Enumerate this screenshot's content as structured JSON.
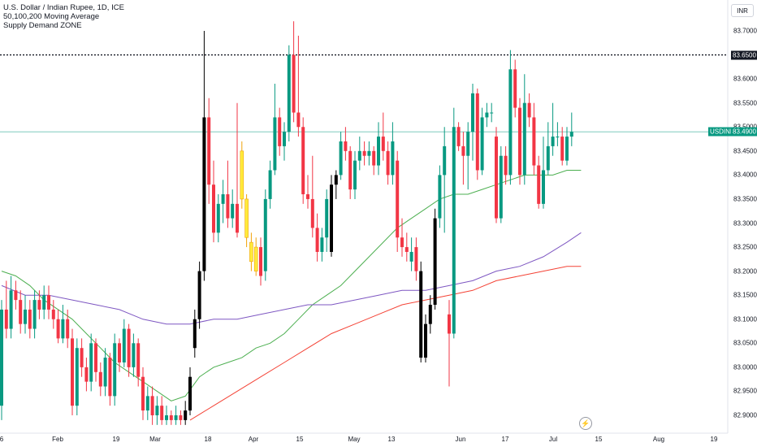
{
  "header": {
    "title": "U.S. Dollar / Indian Rupee, 1D, ICE",
    "indicator_1": "50,100,200 Moving Average",
    "indicator_2": "Supply Demand ZONE",
    "currency": "INR"
  },
  "price_tags": {
    "level_value": "83.6500",
    "symbol": "USDINR",
    "current_value": "83.4900"
  },
  "colors": {
    "up": "#089981",
    "down": "#f23645",
    "black": "#000000",
    "yellow": "#ffeb3b",
    "ma50": "#4caf50",
    "ma100": "#7e57c2",
    "ma200": "#f44336",
    "current_line": "#089981",
    "level_line": "#131722"
  },
  "chart_data": {
    "type": "candlestick",
    "y_axis": {
      "range": [
        82.88,
        83.72
      ],
      "ticks": [
        "83.7000",
        "83.6500",
        "83.6000",
        "83.5500",
        "83.5000",
        "83.4500",
        "83.4000",
        "83.3500",
        "83.3000",
        "83.2500",
        "83.2000",
        "83.1500",
        "83.1000",
        "83.0500",
        "83.0000",
        "82.9500",
        "82.9000"
      ]
    },
    "x_axis": {
      "ticks": [
        "6",
        "Feb",
        "19",
        "Mar",
        "18",
        "Apr",
        "15",
        "May",
        "13",
        "Jun",
        "17",
        "Jul",
        "15",
        "Aug",
        "19"
      ]
    },
    "horizontal_level": 83.65,
    "current_price": 83.49,
    "candles": [
      {
        "o": 82.92,
        "c": 83.12,
        "h": 83.14,
        "l": 82.89,
        "k": "up"
      },
      {
        "o": 83.12,
        "c": 83.08,
        "h": 83.18,
        "l": 83.06,
        "k": "down"
      },
      {
        "o": 83.08,
        "c": 83.16,
        "h": 83.19,
        "l": 83.06,
        "k": "up"
      },
      {
        "o": 83.16,
        "c": 83.14,
        "h": 83.18,
        "l": 83.12,
        "k": "down"
      },
      {
        "o": 83.14,
        "c": 83.09,
        "h": 83.16,
        "l": 83.07,
        "k": "down"
      },
      {
        "o": 83.09,
        "c": 83.12,
        "h": 83.15,
        "l": 83.07,
        "k": "up"
      },
      {
        "o": 83.12,
        "c": 83.08,
        "h": 83.14,
        "l": 83.06,
        "k": "down"
      },
      {
        "o": 83.08,
        "c": 83.14,
        "h": 83.16,
        "l": 83.06,
        "k": "up"
      },
      {
        "o": 83.14,
        "c": 83.12,
        "h": 83.16,
        "l": 83.1,
        "k": "down"
      },
      {
        "o": 83.12,
        "c": 83.15,
        "h": 83.17,
        "l": 83.1,
        "k": "up"
      },
      {
        "o": 83.15,
        "c": 83.12,
        "h": 83.17,
        "l": 83.1,
        "k": "down"
      },
      {
        "o": 83.12,
        "c": 83.1,
        "h": 83.14,
        "l": 83.08,
        "k": "down"
      },
      {
        "o": 83.1,
        "c": 83.06,
        "h": 83.12,
        "l": 83.05,
        "k": "down"
      },
      {
        "o": 83.06,
        "c": 83.1,
        "h": 83.13,
        "l": 83.05,
        "k": "up"
      },
      {
        "o": 83.1,
        "c": 83.06,
        "h": 83.12,
        "l": 83.04,
        "k": "down"
      },
      {
        "o": 83.06,
        "c": 82.92,
        "h": 83.08,
        "l": 82.9,
        "k": "down"
      },
      {
        "o": 82.92,
        "c": 83.04,
        "h": 83.06,
        "l": 82.9,
        "k": "up"
      },
      {
        "o": 83.04,
        "c": 83.0,
        "h": 83.06,
        "l": 82.98,
        "k": "down"
      },
      {
        "o": 83.0,
        "c": 82.97,
        "h": 83.02,
        "l": 82.95,
        "k": "down"
      },
      {
        "o": 82.97,
        "c": 83.05,
        "h": 83.07,
        "l": 82.95,
        "k": "up"
      },
      {
        "o": 83.05,
        "c": 82.99,
        "h": 83.06,
        "l": 82.97,
        "k": "down"
      },
      {
        "o": 82.99,
        "c": 82.96,
        "h": 83.01,
        "l": 82.94,
        "k": "down"
      },
      {
        "o": 82.96,
        "c": 83.02,
        "h": 83.04,
        "l": 82.94,
        "k": "up"
      },
      {
        "o": 83.02,
        "c": 82.94,
        "h": 83.03,
        "l": 82.92,
        "k": "down"
      },
      {
        "o": 82.94,
        "c": 83.05,
        "h": 83.07,
        "l": 82.92,
        "k": "up"
      },
      {
        "o": 83.05,
        "c": 83.01,
        "h": 83.06,
        "l": 82.99,
        "k": "down"
      },
      {
        "o": 83.01,
        "c": 83.08,
        "h": 83.1,
        "l": 83.0,
        "k": "up"
      },
      {
        "o": 83.08,
        "c": 83.0,
        "h": 83.09,
        "l": 82.98,
        "k": "down"
      },
      {
        "o": 83.0,
        "c": 83.05,
        "h": 83.07,
        "l": 82.98,
        "k": "up"
      },
      {
        "o": 83.05,
        "c": 82.98,
        "h": 83.06,
        "l": 82.96,
        "k": "down"
      },
      {
        "o": 82.98,
        "c": 82.91,
        "h": 83.0,
        "l": 82.89,
        "k": "down"
      },
      {
        "o": 82.91,
        "c": 82.94,
        "h": 82.96,
        "l": 82.89,
        "k": "up"
      },
      {
        "o": 82.94,
        "c": 82.9,
        "h": 82.96,
        "l": 82.88,
        "k": "down"
      },
      {
        "o": 82.9,
        "c": 82.92,
        "h": 82.94,
        "l": 82.88,
        "k": "up"
      },
      {
        "o": 82.92,
        "c": 82.89,
        "h": 82.94,
        "l": 82.88,
        "k": "down"
      },
      {
        "o": 82.89,
        "c": 82.9,
        "h": 82.92,
        "l": 82.88,
        "k": "up"
      },
      {
        "o": 82.9,
        "c": 82.89,
        "h": 82.91,
        "l": 82.88,
        "k": "down"
      },
      {
        "o": 82.89,
        "c": 82.9,
        "h": 82.92,
        "l": 82.88,
        "k": "up"
      },
      {
        "o": 82.89,
        "c": 82.9,
        "h": 82.91,
        "l": 82.88,
        "k": "down"
      },
      {
        "o": 82.89,
        "c": 82.91,
        "h": 82.93,
        "l": 82.88,
        "k": "black"
      },
      {
        "o": 82.91,
        "c": 82.98,
        "h": 83.0,
        "l": 82.9,
        "k": "black"
      },
      {
        "o": 83.04,
        "c": 83.1,
        "h": 83.12,
        "l": 83.02,
        "k": "black"
      },
      {
        "o": 83.1,
        "c": 83.2,
        "h": 83.22,
        "l": 83.08,
        "k": "black"
      },
      {
        "o": 83.2,
        "c": 83.52,
        "h": 83.7,
        "l": 83.18,
        "k": "black"
      },
      {
        "o": 83.52,
        "c": 83.38,
        "h": 83.56,
        "l": 83.34,
        "k": "down"
      },
      {
        "o": 83.38,
        "c": 83.28,
        "h": 83.43,
        "l": 83.26,
        "k": "down"
      },
      {
        "o": 83.28,
        "c": 83.34,
        "h": 83.36,
        "l": 83.26,
        "k": "up"
      },
      {
        "o": 83.34,
        "c": 83.36,
        "h": 83.39,
        "l": 83.3,
        "k": "up"
      },
      {
        "o": 83.36,
        "c": 83.31,
        "h": 83.43,
        "l": 83.29,
        "k": "down"
      },
      {
        "o": 83.31,
        "c": 83.34,
        "h": 83.37,
        "l": 83.29,
        "k": "up"
      },
      {
        "o": 83.34,
        "c": 83.28,
        "h": 83.55,
        "l": 83.27,
        "k": "down"
      },
      {
        "o": 83.35,
        "c": 83.45,
        "h": 83.47,
        "l": 83.33,
        "k": "yellow"
      },
      {
        "o": 83.35,
        "c": 83.27,
        "h": 83.36,
        "l": 83.25,
        "k": "yellow"
      },
      {
        "o": 83.26,
        "c": 83.22,
        "h": 83.28,
        "l": 83.2,
        "k": "yellow"
      },
      {
        "o": 83.2,
        "c": 83.25,
        "h": 83.27,
        "l": 83.19,
        "k": "yellow"
      },
      {
        "o": 83.25,
        "c": 83.19,
        "h": 83.27,
        "l": 83.17,
        "k": "down"
      },
      {
        "o": 83.2,
        "c": 83.35,
        "h": 83.37,
        "l": 83.18,
        "k": "up"
      },
      {
        "o": 83.35,
        "c": 83.41,
        "h": 83.43,
        "l": 83.33,
        "k": "up"
      },
      {
        "o": 83.41,
        "c": 83.52,
        "h": 83.59,
        "l": 83.4,
        "k": "up"
      },
      {
        "o": 83.52,
        "c": 83.46,
        "h": 83.54,
        "l": 83.44,
        "k": "down"
      },
      {
        "o": 83.46,
        "c": 83.49,
        "h": 83.51,
        "l": 83.43,
        "k": "up"
      },
      {
        "o": 83.49,
        "c": 83.65,
        "h": 83.67,
        "l": 83.47,
        "k": "up"
      },
      {
        "o": 83.65,
        "c": 83.53,
        "h": 83.72,
        "l": 83.51,
        "k": "down"
      },
      {
        "o": 83.53,
        "c": 83.5,
        "h": 83.69,
        "l": 83.48,
        "k": "down"
      },
      {
        "o": 83.5,
        "c": 83.36,
        "h": 83.52,
        "l": 83.34,
        "k": "down"
      },
      {
        "o": 83.36,
        "c": 83.35,
        "h": 83.4,
        "l": 83.33,
        "k": "down"
      },
      {
        "o": 83.35,
        "c": 83.29,
        "h": 83.44,
        "l": 83.27,
        "k": "down"
      },
      {
        "o": 83.29,
        "c": 83.24,
        "h": 83.32,
        "l": 83.22,
        "k": "down"
      },
      {
        "o": 83.24,
        "c": 83.27,
        "h": 83.29,
        "l": 83.22,
        "k": "up"
      },
      {
        "o": 83.27,
        "c": 83.35,
        "h": 83.37,
        "l": 83.24,
        "k": "up"
      },
      {
        "o": 83.24,
        "c": 83.38,
        "h": 83.4,
        "l": 83.23,
        "k": "black"
      },
      {
        "o": 83.38,
        "c": 83.4,
        "h": 83.41,
        "l": 83.35,
        "k": "black"
      },
      {
        "o": 83.4,
        "c": 83.47,
        "h": 83.49,
        "l": 83.39,
        "k": "up"
      },
      {
        "o": 83.47,
        "c": 83.45,
        "h": 83.5,
        "l": 83.43,
        "k": "down"
      },
      {
        "o": 83.45,
        "c": 83.37,
        "h": 83.46,
        "l": 83.35,
        "k": "down"
      },
      {
        "o": 83.37,
        "c": 83.43,
        "h": 83.45,
        "l": 83.35,
        "k": "up"
      },
      {
        "o": 83.43,
        "c": 83.45,
        "h": 83.48,
        "l": 83.41,
        "k": "up"
      },
      {
        "o": 83.45,
        "c": 83.44,
        "h": 83.47,
        "l": 83.42,
        "k": "down"
      },
      {
        "o": 83.44,
        "c": 83.45,
        "h": 83.47,
        "l": 83.42,
        "k": "up"
      },
      {
        "o": 83.45,
        "c": 83.42,
        "h": 83.46,
        "l": 83.4,
        "k": "down"
      },
      {
        "o": 83.42,
        "c": 83.48,
        "h": 83.51,
        "l": 83.4,
        "k": "up"
      },
      {
        "o": 83.48,
        "c": 83.45,
        "h": 83.53,
        "l": 83.43,
        "k": "down"
      },
      {
        "o": 83.45,
        "c": 83.4,
        "h": 83.47,
        "l": 83.38,
        "k": "down"
      },
      {
        "o": 83.4,
        "c": 83.47,
        "h": 83.51,
        "l": 83.38,
        "k": "up"
      },
      {
        "o": 83.43,
        "c": 83.27,
        "h": 83.45,
        "l": 83.24,
        "k": "down"
      },
      {
        "o": 83.27,
        "c": 83.25,
        "h": 83.31,
        "l": 83.23,
        "k": "down"
      },
      {
        "o": 83.25,
        "c": 83.24,
        "h": 83.28,
        "l": 83.22,
        "k": "down"
      },
      {
        "o": 83.24,
        "c": 83.22,
        "h": 83.27,
        "l": 83.2,
        "k": "up"
      },
      {
        "o": 83.25,
        "c": 83.2,
        "h": 83.27,
        "l": 83.18,
        "k": "down"
      },
      {
        "o": 83.2,
        "c": 83.02,
        "h": 83.22,
        "l": 83.01,
        "k": "black"
      },
      {
        "o": 83.02,
        "c": 83.09,
        "h": 83.11,
        "l": 83.01,
        "k": "black"
      },
      {
        "o": 83.09,
        "c": 83.13,
        "h": 83.15,
        "l": 83.07,
        "k": "black"
      },
      {
        "o": 83.13,
        "c": 83.31,
        "h": 83.33,
        "l": 83.12,
        "k": "black"
      },
      {
        "o": 83.31,
        "c": 83.4,
        "h": 83.42,
        "l": 83.29,
        "k": "up"
      },
      {
        "o": 83.4,
        "c": 83.46,
        "h": 83.5,
        "l": 83.28,
        "k": "up"
      },
      {
        "o": 83.11,
        "c": 83.07,
        "h": 83.14,
        "l": 82.96,
        "k": "down"
      },
      {
        "o": 83.07,
        "c": 83.5,
        "h": 83.54,
        "l": 83.06,
        "k": "up"
      },
      {
        "o": 83.5,
        "c": 83.46,
        "h": 83.51,
        "l": 83.45,
        "k": "down"
      },
      {
        "o": 83.46,
        "c": 83.44,
        "h": 83.49,
        "l": 83.38,
        "k": "down"
      },
      {
        "o": 83.44,
        "c": 83.49,
        "h": 83.51,
        "l": 83.37,
        "k": "up"
      },
      {
        "o": 83.49,
        "c": 83.57,
        "h": 83.59,
        "l": 83.43,
        "k": "up"
      },
      {
        "o": 83.57,
        "c": 83.41,
        "h": 83.58,
        "l": 83.39,
        "k": "down"
      },
      {
        "o": 83.41,
        "c": 83.52,
        "h": 83.54,
        "l": 83.4,
        "k": "up"
      },
      {
        "o": 83.52,
        "c": 83.53,
        "h": 83.55,
        "l": 83.5,
        "k": "up"
      },
      {
        "o": 83.53,
        "c": 83.53,
        "h": 83.55,
        "l": 83.51,
        "k": "up"
      },
      {
        "o": 83.48,
        "c": 83.31,
        "h": 83.5,
        "l": 83.3,
        "k": "down"
      },
      {
        "o": 83.31,
        "c": 83.44,
        "h": 83.46,
        "l": 83.3,
        "k": "up"
      },
      {
        "o": 83.44,
        "c": 83.4,
        "h": 83.46,
        "l": 83.38,
        "k": "down"
      },
      {
        "o": 83.4,
        "c": 83.62,
        "h": 83.66,
        "l": 83.38,
        "k": "up"
      },
      {
        "o": 83.62,
        "c": 83.54,
        "h": 83.64,
        "l": 83.52,
        "k": "down"
      },
      {
        "o": 83.54,
        "c": 83.4,
        "h": 83.56,
        "l": 83.38,
        "k": "down"
      },
      {
        "o": 83.4,
        "c": 83.55,
        "h": 83.61,
        "l": 83.38,
        "k": "up"
      },
      {
        "o": 83.55,
        "c": 83.52,
        "h": 83.57,
        "l": 83.5,
        "k": "down"
      },
      {
        "o": 83.52,
        "c": 83.42,
        "h": 83.55,
        "l": 83.4,
        "k": "down"
      },
      {
        "o": 83.42,
        "c": 83.34,
        "h": 83.44,
        "l": 83.33,
        "k": "down"
      },
      {
        "o": 83.34,
        "c": 83.41,
        "h": 83.48,
        "l": 83.33,
        "k": "up"
      },
      {
        "o": 83.41,
        "c": 83.46,
        "h": 83.51,
        "l": 83.4,
        "k": "up"
      },
      {
        "o": 83.46,
        "c": 83.48,
        "h": 83.55,
        "l": 83.44,
        "k": "up"
      },
      {
        "o": 83.48,
        "c": 83.48,
        "h": 83.51,
        "l": 83.46,
        "k": "up"
      },
      {
        "o": 83.48,
        "c": 83.43,
        "h": 83.5,
        "l": 83.42,
        "k": "down"
      },
      {
        "o": 83.43,
        "c": 83.48,
        "h": 83.5,
        "l": 83.42,
        "k": "up"
      },
      {
        "o": 83.48,
        "c": 83.49,
        "h": 83.53,
        "l": 83.46,
        "k": "up"
      }
    ],
    "ma50": [
      [
        0,
        83.2
      ],
      [
        3,
        83.19
      ],
      [
        6,
        83.17
      ],
      [
        9,
        83.14
      ],
      [
        12,
        83.12
      ],
      [
        15,
        83.1
      ],
      [
        18,
        83.07
      ],
      [
        21,
        83.04
      ],
      [
        24,
        83.01
      ],
      [
        27,
        82.99
      ],
      [
        30,
        82.97
      ],
      [
        33,
        82.95
      ],
      [
        36,
        82.93
      ],
      [
        39,
        82.94
      ],
      [
        42,
        82.98
      ],
      [
        45,
        83.0
      ],
      [
        48,
        83.01
      ],
      [
        51,
        83.02
      ],
      [
        54,
        83.04
      ],
      [
        57,
        83.05
      ],
      [
        60,
        83.07
      ],
      [
        63,
        83.1
      ],
      [
        66,
        83.13
      ],
      [
        69,
        83.15
      ],
      [
        72,
        83.17
      ],
      [
        75,
        83.2
      ],
      [
        78,
        83.23
      ],
      [
        81,
        83.26
      ],
      [
        84,
        83.29
      ],
      [
        87,
        83.31
      ],
      [
        90,
        83.33
      ],
      [
        93,
        83.35
      ],
      [
        96,
        83.36
      ],
      [
        99,
        83.36
      ],
      [
        102,
        83.37
      ],
      [
        105,
        83.38
      ],
      [
        108,
        83.39
      ],
      [
        111,
        83.4
      ],
      [
        114,
        83.4
      ],
      [
        117,
        83.4
      ],
      [
        120,
        83.41
      ],
      [
        123,
        83.41
      ]
    ],
    "ma100": [
      [
        0,
        83.17
      ],
      [
        5,
        83.15
      ],
      [
        10,
        83.15
      ],
      [
        15,
        83.14
      ],
      [
        20,
        83.13
      ],
      [
        25,
        83.12
      ],
      [
        30,
        83.1
      ],
      [
        35,
        83.09
      ],
      [
        40,
        83.09
      ],
      [
        45,
        83.1
      ],
      [
        50,
        83.1
      ],
      [
        55,
        83.11
      ],
      [
        60,
        83.12
      ],
      [
        65,
        83.13
      ],
      [
        70,
        83.13
      ],
      [
        75,
        83.14
      ],
      [
        80,
        83.15
      ],
      [
        85,
        83.16
      ],
      [
        90,
        83.16
      ],
      [
        95,
        83.17
      ],
      [
        100,
        83.18
      ],
      [
        105,
        83.2
      ],
      [
        110,
        83.21
      ],
      [
        115,
        83.23
      ],
      [
        120,
        83.26
      ],
      [
        123,
        83.28
      ]
    ],
    "ma200": [
      [
        40,
        82.89
      ],
      [
        45,
        82.92
      ],
      [
        50,
        82.95
      ],
      [
        55,
        82.98
      ],
      [
        60,
        83.01
      ],
      [
        65,
        83.04
      ],
      [
        70,
        83.07
      ],
      [
        75,
        83.09
      ],
      [
        80,
        83.11
      ],
      [
        85,
        83.13
      ],
      [
        90,
        83.14
      ],
      [
        95,
        83.15
      ],
      [
        100,
        83.16
      ],
      [
        105,
        83.18
      ],
      [
        110,
        83.19
      ],
      [
        115,
        83.2
      ],
      [
        120,
        83.21
      ],
      [
        123,
        83.21
      ]
    ]
  }
}
